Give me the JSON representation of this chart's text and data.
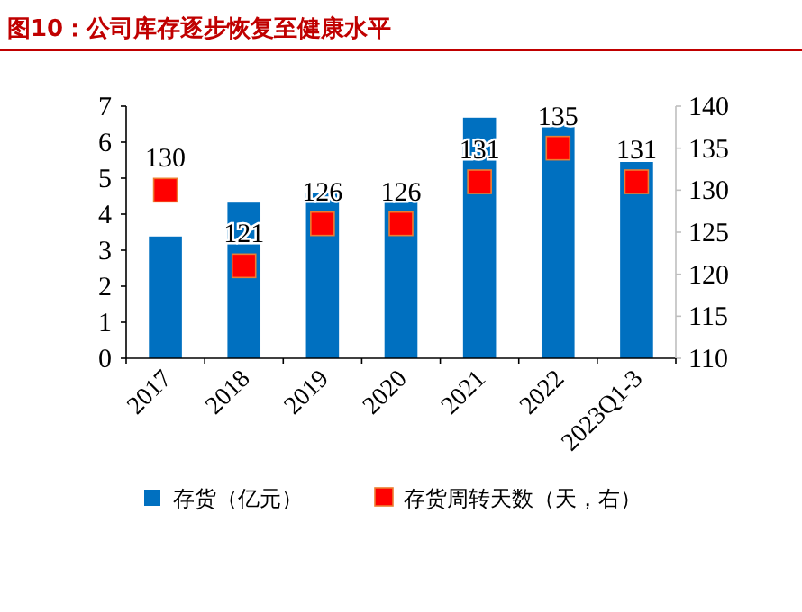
{
  "chart_data": {
    "type": "bar",
    "title": "图10：公司库存逐步恢复至健康水平",
    "categories": [
      "2017",
      "2018",
      "2019",
      "2020",
      "2021",
      "2022",
      "2023Q1-3"
    ],
    "series": [
      {
        "name": "存货（亿元）",
        "color": "#0070c0",
        "values": [
          3.38,
          4.32,
          4.6,
          4.35,
          6.68,
          6.52,
          5.45
        ]
      },
      {
        "name": "存货周转天数（天，右）",
        "type": "scatter",
        "axis": "y2",
        "marker": "square",
        "color": "#ff0000",
        "values": [
          130,
          121,
          126,
          126,
          131,
          135,
          131
        ],
        "data_labels": true
      }
    ],
    "ylim": [
      0,
      7
    ],
    "yticks": [
      0,
      1,
      2,
      3,
      4,
      5,
      6,
      7
    ],
    "y2lim": [
      110,
      140
    ],
    "y2ticks": [
      110,
      115,
      120,
      125,
      130,
      135,
      140
    ],
    "grid": false,
    "legend": "bottom"
  }
}
